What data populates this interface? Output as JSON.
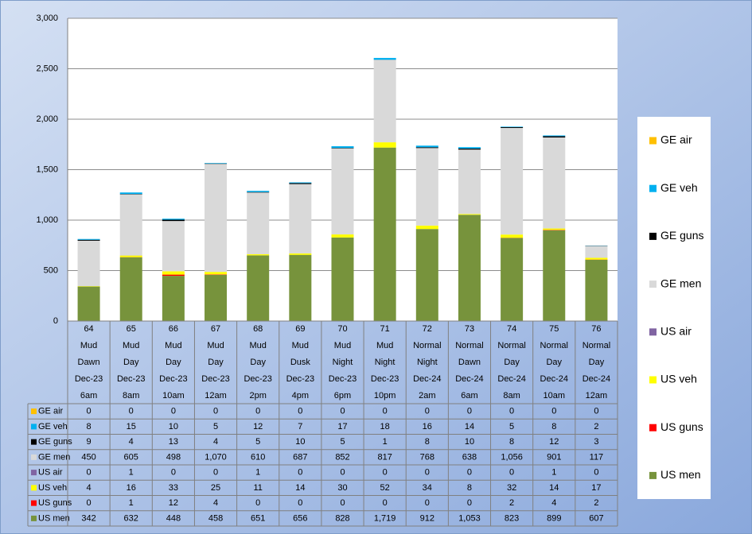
{
  "chart_data": {
    "type": "stacked_bar",
    "categories": [
      [
        "64",
        "Mud",
        "Dawn",
        "Dec-23",
        "6am"
      ],
      [
        "65",
        "Mud",
        "Day",
        "Dec-23",
        "8am"
      ],
      [
        "66",
        "Mud",
        "Day",
        "Dec-23",
        "10am"
      ],
      [
        "67",
        "Mud",
        "Day",
        "Dec-23",
        "12am"
      ],
      [
        "68",
        "Mud",
        "Day",
        "Dec-23",
        "2pm"
      ],
      [
        "69",
        "Mud",
        "Dusk",
        "Dec-23",
        "4pm"
      ],
      [
        "70",
        "Mud",
        "Night",
        "Dec-23",
        "6pm"
      ],
      [
        "71",
        "Mud",
        "Night",
        "Dec-23",
        "10pm"
      ],
      [
        "72",
        "Normal",
        "Night",
        "Dec-24",
        "2am"
      ],
      [
        "73",
        "Normal",
        "Dawn",
        "Dec-24",
        "6am"
      ],
      [
        "74",
        "Normal",
        "Day",
        "Dec-24",
        "8am"
      ],
      [
        "75",
        "Normal",
        "Day",
        "Dec-24",
        "10am"
      ],
      [
        "76",
        "Normal",
        "Day",
        "Dec-24",
        "12am"
      ]
    ],
    "series": [
      {
        "name": "US men",
        "color": "#77933c",
        "values": [
          342,
          632,
          448,
          458,
          651,
          656,
          828,
          1719,
          912,
          1053,
          823,
          899,
          607
        ],
        "value_labels": [
          "342",
          "632",
          "448",
          "458",
          "651",
          "656",
          "828",
          "1,719",
          "912",
          "1,053",
          "823",
          "899",
          "607"
        ]
      },
      {
        "name": "US guns",
        "color": "#ff0000",
        "values": [
          0,
          1,
          12,
          4,
          0,
          0,
          0,
          0,
          0,
          0,
          2,
          4,
          2
        ]
      },
      {
        "name": "US veh",
        "color": "#ffff00",
        "values": [
          4,
          16,
          33,
          25,
          11,
          14,
          30,
          52,
          34,
          8,
          32,
          14,
          17
        ]
      },
      {
        "name": "US air",
        "color": "#8064a2",
        "values": [
          0,
          1,
          0,
          0,
          1,
          0,
          0,
          0,
          0,
          0,
          0,
          1,
          0
        ]
      },
      {
        "name": "GE men",
        "color": "#d9d9d9",
        "values": [
          450,
          605,
          498,
          1070,
          610,
          687,
          852,
          817,
          768,
          638,
          1056,
          901,
          117
        ],
        "value_labels": [
          "450",
          "605",
          "498",
          "1,070",
          "610",
          "687",
          "852",
          "817",
          "768",
          "638",
          "1,056",
          "901",
          "117"
        ]
      },
      {
        "name": "GE guns",
        "color": "#000000",
        "values": [
          9,
          4,
          13,
          4,
          5,
          10,
          5,
          1,
          8,
          10,
          8,
          12,
          3
        ]
      },
      {
        "name": "GE veh",
        "color": "#00b0f0",
        "values": [
          8,
          15,
          10,
          5,
          12,
          7,
          17,
          18,
          16,
          14,
          5,
          8,
          2
        ]
      },
      {
        "name": "GE air",
        "color": "#ffc000",
        "values": [
          0,
          0,
          0,
          0,
          0,
          0,
          0,
          0,
          0,
          0,
          0,
          0,
          0
        ]
      }
    ],
    "ylim": [
      0,
      3000
    ],
    "yticks": [
      0,
      500,
      {
        "value": 1000,
        "label": "1,000"
      },
      {
        "value": 1500,
        "label": "1,500"
      },
      {
        "value": 2000,
        "label": "2,000"
      },
      {
        "value": 2500,
        "label": "2,500"
      },
      {
        "value": 3000,
        "label": "3,000"
      }
    ],
    "grid": true,
    "legend": "right",
    "data_table": true
  }
}
